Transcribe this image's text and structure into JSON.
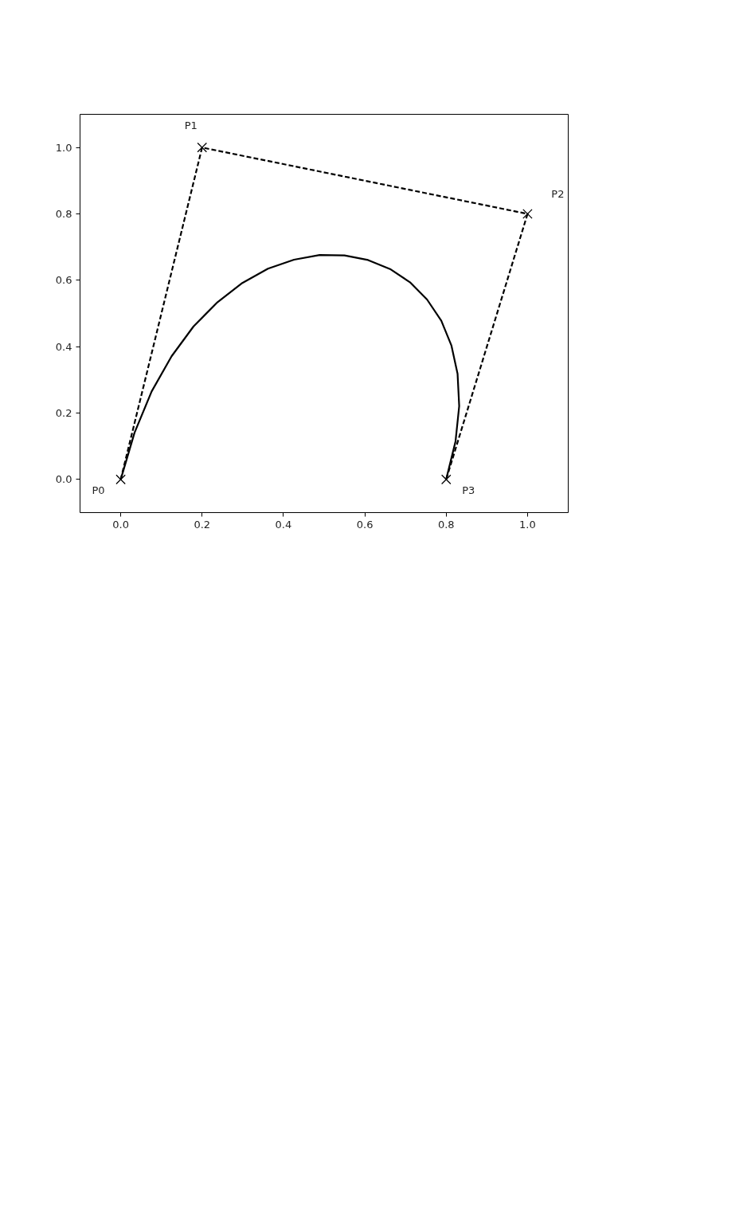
{
  "chart_data": {
    "type": "line",
    "xlim": [
      -0.1,
      1.1
    ],
    "ylim": [
      -0.1,
      1.1
    ],
    "xticks": [
      {
        "value": 0,
        "label": "0.0"
      },
      {
        "value": 0.2,
        "label": "0.2"
      },
      {
        "value": 0.4,
        "label": "0.4"
      },
      {
        "value": 0.6,
        "label": "0.6"
      },
      {
        "value": 0.8,
        "label": "0.8"
      },
      {
        "value": 1,
        "label": "1.0"
      }
    ],
    "yticks": [
      {
        "value": 0,
        "label": "0.0"
      },
      {
        "value": 0.2,
        "label": "0.2"
      },
      {
        "value": 0.4,
        "label": "0.4"
      },
      {
        "value": 0.6,
        "label": "0.6"
      },
      {
        "value": 0.8,
        "label": "0.8"
      },
      {
        "value": 1,
        "label": "1.0"
      }
    ],
    "grid": false,
    "series": [
      {
        "color": "#000000",
        "line_style": "solid",
        "marker": "none",
        "x": [
          0,
          0.034,
          0.076,
          0.125,
          0.179,
          0.238,
          0.299,
          0.362,
          0.426,
          0.489,
          0.55,
          0.608,
          0.662,
          0.711,
          0.753,
          0.788,
          0.813,
          0.828,
          0.832,
          0.823,
          0.8
        ],
        "values": [
          0,
          0.141,
          0.265,
          0.371,
          0.461,
          0.534,
          0.592,
          0.635,
          0.662,
          0.676,
          0.675,
          0.661,
          0.634,
          0.594,
          0.542,
          0.478,
          0.403,
          0.318,
          0.221,
          0.115,
          0
        ]
      },
      {
        "color": "#000000",
        "line_style": "dashed",
        "marker": "cross",
        "x": [
          0,
          0.2,
          1,
          0.8
        ],
        "values": [
          0,
          1,
          0.8,
          0
        ]
      }
    ],
    "annotations": [
      {
        "text": "P0",
        "x": 0,
        "y": 0
      },
      {
        "text": "P1",
        "x": 0.2,
        "y": 1
      },
      {
        "text": "P2",
        "x": 1,
        "y": 0.8
      },
      {
        "text": "P3",
        "x": 0.8,
        "y": 0
      }
    ]
  }
}
